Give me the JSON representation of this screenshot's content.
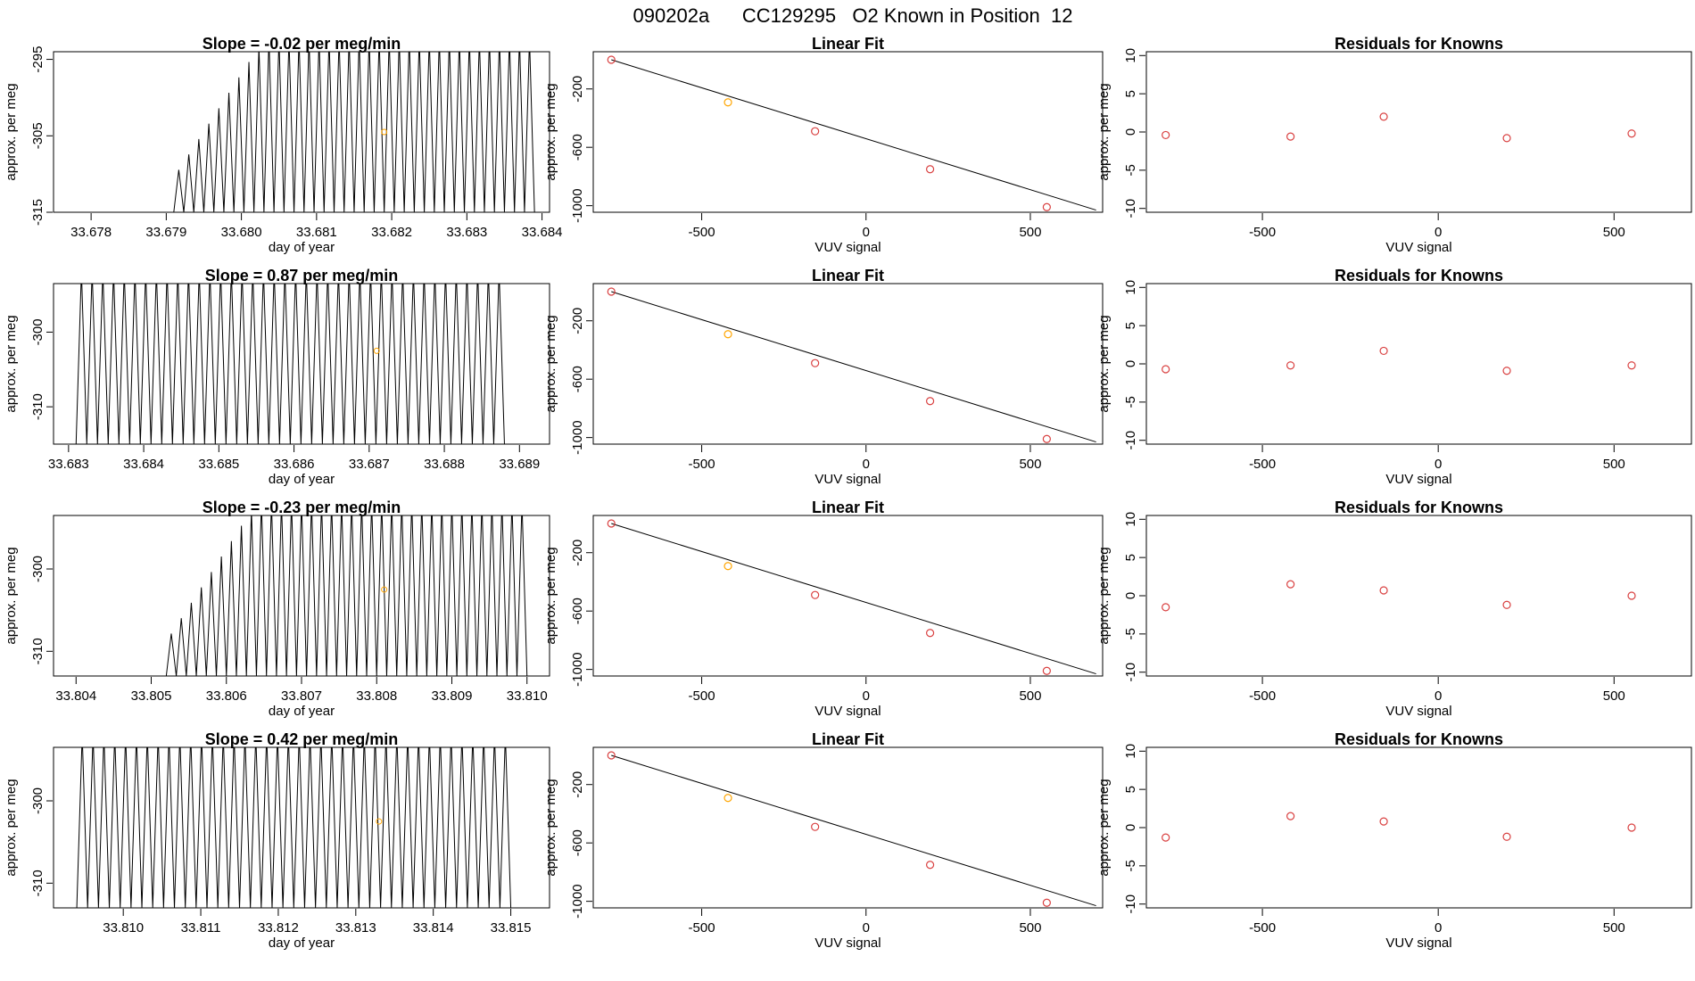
{
  "figure": {
    "title": "090202a      CC129295   O2 Known in Position  12",
    "xlabel_time": "day of year",
    "ylabel": "approx. per meg",
    "xlabel_fit": "VUV signal",
    "fit_title": "Linear Fit",
    "resid_title": "Residuals for Knowns",
    "colors": {
      "trace": "#000000",
      "marker_highlight": "#ffa500",
      "marker_fit": "#d94040",
      "fit_line": "#000000"
    }
  },
  "chart_data": [
    {
      "type": "line",
      "row": 0,
      "panel": "time",
      "title": "Slope =  -0.02  per meg/min",
      "xlabel": "day of year",
      "ylabel": "approx. per meg",
      "xlim": [
        33.6775,
        33.6841
      ],
      "ylim": [
        -315,
        -294
      ],
      "xticks": [
        "33.678",
        "33.679",
        "33.680",
        "33.681",
        "33.682",
        "33.683",
        "33.684"
      ],
      "yticks": [
        "-315",
        "-305",
        "-295"
      ],
      "signal": {
        "x_start": 33.6791,
        "x_end": 33.6839,
        "y_floor": -315,
        "y_peak": -294,
        "ramp_end": 33.6803,
        "n_cycles": 36
      },
      "marker": {
        "x": 33.6819,
        "y": -304.5
      }
    },
    {
      "type": "scatter",
      "row": 0,
      "panel": "fit",
      "title": "Linear Fit",
      "xlabel": "VUV signal",
      "ylabel": "approx. per meg",
      "xlim": [
        -830,
        720
      ],
      "ylim": [
        -1045,
        55
      ],
      "xticks": [
        "-500",
        "0",
        "500"
      ],
      "yticks": [
        "-200",
        "-600",
        "-1000"
      ],
      "points": [
        [
          -775,
          0
        ],
        [
          -420,
          -292
        ],
        [
          -155,
          -490
        ],
        [
          195,
          -750
        ],
        [
          550,
          -1010
        ]
      ],
      "highlight_index": 1,
      "fit_line": [
        [
          -775,
          0
        ],
        [
          700,
          -1030
        ]
      ]
    },
    {
      "type": "scatter",
      "row": 0,
      "panel": "resid",
      "title": "Residuals for Knowns",
      "xlabel": "VUV signal",
      "ylabel": "approx. per meg",
      "xlim": [
        -830,
        720
      ],
      "ylim": [
        -10.5,
        10.5
      ],
      "xticks": [
        "-500",
        "0",
        "500"
      ],
      "yticks": [
        "-10",
        "-5",
        "0",
        "5",
        "10"
      ],
      "points": [
        [
          -775,
          -0.4
        ],
        [
          -420,
          -0.6
        ],
        [
          -155,
          2.0
        ],
        [
          195,
          -0.8
        ],
        [
          550,
          -0.2
        ]
      ]
    },
    {
      "type": "line",
      "row": 1,
      "panel": "time",
      "title": "Slope =  0.87  per meg/min",
      "xlabel": "day of year",
      "ylabel": "approx. per meg",
      "xlim": [
        33.6828,
        33.6894
      ],
      "ylim": [
        -315,
        -293.5
      ],
      "xticks": [
        "33.683",
        "33.684",
        "33.685",
        "33.686",
        "33.687",
        "33.688",
        "33.689"
      ],
      "yticks": [
        "-310",
        "-300"
      ],
      "signal": {
        "x_start": 33.6831,
        "x_end": 33.6888,
        "y_floor": -315,
        "y_peak": -293.5,
        "ramp_end": 33.6831,
        "n_cycles": 40
      },
      "marker": {
        "x": 33.6871,
        "y": -302.5
      }
    },
    {
      "type": "scatter",
      "row": 1,
      "panel": "fit",
      "title": "Linear Fit",
      "xlabel": "VUV signal",
      "ylabel": "approx. per meg",
      "xlim": [
        -830,
        720
      ],
      "ylim": [
        -1045,
        55
      ],
      "xticks": [
        "-500",
        "0",
        "500"
      ],
      "yticks": [
        "-200",
        "-600",
        "-1000"
      ],
      "points": [
        [
          -775,
          0
        ],
        [
          -420,
          -292
        ],
        [
          -155,
          -490
        ],
        [
          195,
          -750
        ],
        [
          550,
          -1010
        ]
      ],
      "highlight_index": 1,
      "fit_line": [
        [
          -775,
          0
        ],
        [
          700,
          -1030
        ]
      ]
    },
    {
      "type": "scatter",
      "row": 1,
      "panel": "resid",
      "title": "Residuals for Knowns",
      "xlabel": "VUV signal",
      "ylabel": "approx. per meg",
      "xlim": [
        -830,
        720
      ],
      "ylim": [
        -10.5,
        10.5
      ],
      "xticks": [
        "-500",
        "0",
        "500"
      ],
      "yticks": [
        "-10",
        "-5",
        "0",
        "5",
        "10"
      ],
      "points": [
        [
          -775,
          -0.7
        ],
        [
          -420,
          -0.2
        ],
        [
          -155,
          1.7
        ],
        [
          195,
          -0.9
        ],
        [
          550,
          -0.2
        ]
      ]
    },
    {
      "type": "line",
      "row": 2,
      "panel": "time",
      "title": "Slope =  -0.23  per meg/min",
      "xlabel": "day of year",
      "ylabel": "approx. per meg",
      "xlim": [
        33.8037,
        33.8103
      ],
      "ylim": [
        -313,
        -293.5
      ],
      "xticks": [
        "33.804",
        "33.805",
        "33.806",
        "33.807",
        "33.808",
        "33.809",
        "33.810"
      ],
      "yticks": [
        "-310",
        "-300"
      ],
      "signal": {
        "x_start": 33.8052,
        "x_end": 33.81,
        "y_floor": -313,
        "y_peak": -293.5,
        "ramp_end": 33.8064,
        "n_cycles": 36
      },
      "marker": {
        "x": 33.8081,
        "y": -302.5
      }
    },
    {
      "type": "scatter",
      "row": 2,
      "panel": "fit",
      "title": "Linear Fit",
      "xlabel": "VUV signal",
      "ylabel": "approx. per meg",
      "xlim": [
        -830,
        720
      ],
      "ylim": [
        -1045,
        55
      ],
      "xticks": [
        "-500",
        "0",
        "500"
      ],
      "yticks": [
        "-200",
        "-600",
        "-1000"
      ],
      "points": [
        [
          -775,
          0
        ],
        [
          -420,
          -292
        ],
        [
          -155,
          -490
        ],
        [
          195,
          -750
        ],
        [
          550,
          -1010
        ]
      ],
      "highlight_index": 1,
      "fit_line": [
        [
          -775,
          0
        ],
        [
          700,
          -1030
        ]
      ]
    },
    {
      "type": "scatter",
      "row": 2,
      "panel": "resid",
      "title": "Residuals for Knowns",
      "xlabel": "VUV signal",
      "ylabel": "approx. per meg",
      "xlim": [
        -830,
        720
      ],
      "ylim": [
        -10.5,
        10.5
      ],
      "xticks": [
        "-500",
        "0",
        "500"
      ],
      "yticks": [
        "-10",
        "-5",
        "0",
        "5",
        "10"
      ],
      "points": [
        [
          -775,
          -1.5
        ],
        [
          -420,
          1.5
        ],
        [
          -155,
          0.7
        ],
        [
          195,
          -1.2
        ],
        [
          550,
          0.0
        ]
      ]
    },
    {
      "type": "line",
      "row": 3,
      "panel": "time",
      "title": "Slope =  0.42  per meg/min",
      "xlabel": "day of year",
      "ylabel": "approx. per meg",
      "xlim": [
        33.8091,
        33.8155
      ],
      "ylim": [
        -313,
        -293.5
      ],
      "xticks": [
        "33.810",
        "33.811",
        "33.812",
        "33.813",
        "33.814",
        "33.815"
      ],
      "yticks": [
        "-310",
        "-300"
      ],
      "signal": {
        "x_start": 33.8094,
        "x_end": 33.815,
        "y_floor": -313,
        "y_peak": -293.5,
        "ramp_end": 33.8094,
        "n_cycles": 40
      },
      "marker": {
        "x": 33.8133,
        "y": -302.5
      }
    },
    {
      "type": "scatter",
      "row": 3,
      "panel": "fit",
      "title": "Linear Fit",
      "xlabel": "VUV signal",
      "ylabel": "approx. per meg",
      "xlim": [
        -830,
        720
      ],
      "ylim": [
        -1045,
        55
      ],
      "xticks": [
        "-500",
        "0",
        "500"
      ],
      "yticks": [
        "-200",
        "-600",
        "-1000"
      ],
      "points": [
        [
          -775,
          0
        ],
        [
          -420,
          -292
        ],
        [
          -155,
          -490
        ],
        [
          195,
          -750
        ],
        [
          550,
          -1010
        ]
      ],
      "highlight_index": 1,
      "fit_line": [
        [
          -775,
          0
        ],
        [
          700,
          -1030
        ]
      ]
    },
    {
      "type": "scatter",
      "row": 3,
      "panel": "resid",
      "title": "Residuals for Knowns",
      "xlabel": "VUV signal",
      "ylabel": "approx. per meg",
      "xlim": [
        -830,
        720
      ],
      "ylim": [
        -10.5,
        10.5
      ],
      "xticks": [
        "-500",
        "0",
        "500"
      ],
      "yticks": [
        "-10",
        "-5",
        "0",
        "5",
        "10"
      ],
      "points": [
        [
          -775,
          -1.3
        ],
        [
          -420,
          1.5
        ],
        [
          -155,
          0.8
        ],
        [
          195,
          -1.2
        ],
        [
          550,
          0.0
        ]
      ]
    }
  ]
}
